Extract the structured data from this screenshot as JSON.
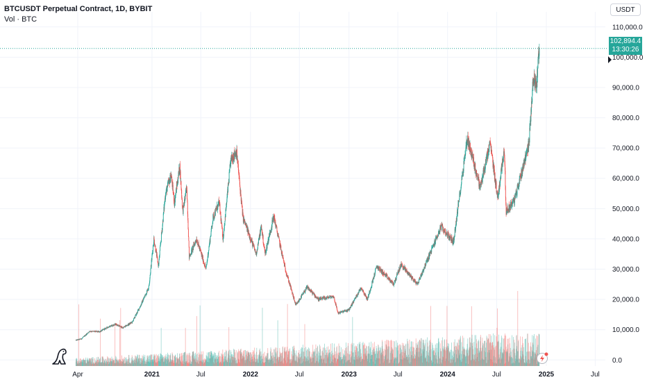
{
  "legend": {
    "title": "BTCUSDT Perpetual Contract, 1D, BYBIT",
    "volume_label": "Vol · BTC"
  },
  "toolbar": {
    "currency": "USDT"
  },
  "price_tag": {
    "price": "102,894.4",
    "countdown": "13:30:26"
  },
  "colors": {
    "up": "#26a69a",
    "down": "#ef5350",
    "grid": "#f0f3fa",
    "price_line": "#26a69a"
  },
  "icons": {
    "logo": "tradingview-dino-icon",
    "alert": "lightning-alert-icon"
  },
  "chart_data": {
    "type": "candlestick",
    "x_ticks": [
      "Apr",
      "2021",
      "Jul",
      "2022",
      "Jul",
      "2023",
      "Jul",
      "2024",
      "Jul",
      "2025",
      "Jul"
    ],
    "y_ticks": [
      "110,000.0",
      "100,000.0",
      "90,000.0",
      "80,000.0",
      "70,000.0",
      "60,000.0",
      "50,000.0",
      "40,000.0",
      "30,000.0",
      "20,000.0",
      "10,000.0",
      "0.0"
    ],
    "y_tick_values": [
      110000,
      100000,
      90000,
      80000,
      70000,
      60000,
      50000,
      40000,
      30000,
      20000,
      10000,
      0
    ],
    "ylim": [
      -2000,
      115000
    ],
    "last_price": 102894.4,
    "price_path": [
      [
        "2020-03-25",
        6500
      ],
      [
        "2020-04-15",
        7000
      ],
      [
        "2020-05-15",
        9500
      ],
      [
        "2020-06-20",
        9300
      ],
      [
        "2020-07-25",
        11000
      ],
      [
        "2020-08-20",
        11800
      ],
      [
        "2020-09-15",
        10600
      ],
      [
        "2020-10-20",
        12500
      ],
      [
        "2020-11-20",
        18000
      ],
      [
        "2020-12-20",
        24000
      ],
      [
        "2021-01-08",
        40000
      ],
      [
        "2021-01-25",
        31000
      ],
      [
        "2021-02-20",
        55000
      ],
      [
        "2021-03-13",
        61000
      ],
      [
        "2021-03-25",
        52000
      ],
      [
        "2021-04-14",
        64000
      ],
      [
        "2021-04-25",
        49000
      ],
      [
        "2021-05-10",
        57000
      ],
      [
        "2021-05-19",
        34000
      ],
      [
        "2021-06-15",
        40000
      ],
      [
        "2021-07-20",
        30000
      ],
      [
        "2021-08-15",
        47000
      ],
      [
        "2021-09-07",
        52000
      ],
      [
        "2021-09-21",
        40000
      ],
      [
        "2021-10-20",
        66000
      ],
      [
        "2021-11-10",
        69000
      ],
      [
        "2021-12-04",
        47000
      ],
      [
        "2022-01-22",
        35000
      ],
      [
        "2022-02-10",
        44000
      ],
      [
        "2022-02-24",
        35000
      ],
      [
        "2022-03-28",
        47500
      ],
      [
        "2022-05-10",
        30000
      ],
      [
        "2022-06-18",
        18000
      ],
      [
        "2022-07-30",
        24000
      ],
      [
        "2022-09-10",
        20000
      ],
      [
        "2022-11-05",
        21000
      ],
      [
        "2022-11-21",
        15500
      ],
      [
        "2022-12-31",
        16500
      ],
      [
        "2023-02-15",
        24000
      ],
      [
        "2023-03-10",
        20000
      ],
      [
        "2023-04-14",
        31000
      ],
      [
        "2023-06-15",
        25000
      ],
      [
        "2023-07-13",
        31500
      ],
      [
        "2023-09-11",
        25000
      ],
      [
        "2023-10-25",
        34500
      ],
      [
        "2023-12-08",
        44000
      ],
      [
        "2024-01-23",
        39000
      ],
      [
        "2024-03-14",
        73500
      ],
      [
        "2024-05-01",
        57000
      ],
      [
        "2024-06-07",
        71500
      ],
      [
        "2024-07-05",
        53500
      ],
      [
        "2024-07-29",
        70000
      ],
      [
        "2024-08-05",
        49000
      ],
      [
        "2024-09-06",
        53000
      ],
      [
        "2024-10-29",
        72000
      ],
      [
        "2024-11-13",
        93000
      ],
      [
        "2024-11-26",
        91000
      ],
      [
        "2024-12-05",
        103000
      ],
      [
        "2024-12-06",
        102894
      ]
    ]
  }
}
